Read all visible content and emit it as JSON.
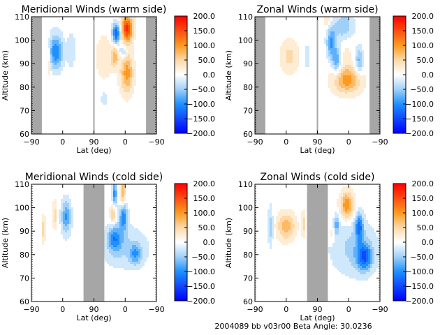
{
  "footer": "2004089 bb v03r00   Beta Angle: 30.0236",
  "colorbar": {
    "min": -200,
    "max": 200,
    "tick_labels": [
      "200.0",
      "150.0",
      "100.0",
      "50.0",
      "0.0",
      "−50.0",
      "−100.0",
      "−150.0",
      "−200.0"
    ],
    "stops": [
      {
        "v": -200,
        "c": "#0000ff"
      },
      {
        "v": -100,
        "c": "#1e90ff"
      },
      {
        "v": -50,
        "c": "#a0d0f8"
      },
      {
        "v": 0,
        "c": "#ffffff"
      },
      {
        "v": 50,
        "c": "#fcd9a8"
      },
      {
        "v": 100,
        "c": "#ff9a20"
      },
      {
        "v": 200,
        "c": "#ff0000"
      }
    ]
  },
  "chart_data": [
    {
      "type": "heatmap",
      "title": "Meridional Winds (warm side)",
      "xlabel": "Lat (deg)",
      "ylabel": "Altitude (km)",
      "xtick_labels": [
        "−90",
        "0",
        "90",
        "0",
        "−90"
      ],
      "ytick_labels": [
        "60",
        "70",
        "80",
        "90",
        "100",
        "110"
      ],
      "ylim": [
        60,
        110
      ],
      "x_range": [
        0,
        360
      ],
      "gray_bands": [
        [
          0,
          30
        ],
        [
          330,
          360
        ]
      ],
      "divider_x": 180,
      "blobs": [
        {
          "x": 70,
          "y": 95,
          "sx": 14,
          "sy": 5,
          "v": -110
        },
        {
          "x": 50,
          "y": 92,
          "sx": 4,
          "sy": 5,
          "v": 50
        },
        {
          "x": 115,
          "y": 96,
          "sx": 8,
          "sy": 5,
          "v": -35
        },
        {
          "x": 245,
          "y": 103,
          "sx": 9,
          "sy": 3,
          "v": -140
        },
        {
          "x": 275,
          "y": 105,
          "sx": 12,
          "sy": 4,
          "v": 170
        },
        {
          "x": 240,
          "y": 93,
          "sx": 8,
          "sy": 3,
          "v": 70
        },
        {
          "x": 265,
          "y": 95,
          "sx": 8,
          "sy": 2,
          "v": -60
        },
        {
          "x": 275,
          "y": 86,
          "sx": 13,
          "sy": 6,
          "v": 100
        },
        {
          "x": 210,
          "y": 93,
          "sx": 20,
          "sy": 8,
          "v": 25
        },
        {
          "x": 210,
          "y": 75,
          "sx": 6,
          "sy": 2,
          "v": -40
        }
      ]
    },
    {
      "type": "heatmap",
      "title": "Zonal Winds (warm side)",
      "xlabel": "Lat (deg)",
      "ylabel": "Altitude (km)",
      "xtick_labels": [
        "−90",
        "0",
        "90",
        "0",
        "−90"
      ],
      "ytick_labels": [
        "60",
        "70",
        "80",
        "90",
        "100",
        "110"
      ],
      "ylim": [
        60,
        110
      ],
      "x_range": [
        0,
        360
      ],
      "gray_bands": [
        [
          0,
          30
        ],
        [
          330,
          360
        ]
      ],
      "divider_x": 180,
      "blobs": [
        {
          "x": 100,
          "y": 93,
          "sx": 18,
          "sy": 5,
          "v": 45
        },
        {
          "x": 150,
          "y": 93,
          "sx": 5,
          "sy": 4,
          "v": -30
        },
        {
          "x": 220,
          "y": 99,
          "sx": 9,
          "sy": 5,
          "v": -90
        },
        {
          "x": 235,
          "y": 91,
          "sx": 8,
          "sy": 4,
          "v": -80
        },
        {
          "x": 300,
          "y": 91,
          "sx": 8,
          "sy": 4,
          "v": -70
        },
        {
          "x": 255,
          "y": 106,
          "sx": 20,
          "sy": 4,
          "v": -60
        },
        {
          "x": 210,
          "y": 108,
          "sx": 8,
          "sy": 2,
          "v": 40
        },
        {
          "x": 265,
          "y": 83,
          "sx": 28,
          "sy": 4,
          "v": 100
        },
        {
          "x": 265,
          "y": 94,
          "sx": 10,
          "sy": 5,
          "v": 20
        }
      ]
    },
    {
      "type": "heatmap",
      "title": "Meridional Winds (cold side)",
      "xlabel": "Lat (deg)",
      "ylabel": "Altitude (km)",
      "xtick_labels": [
        "−90",
        "0",
        "90",
        "0",
        "−90"
      ],
      "ytick_labels": [
        "60",
        "70",
        "80",
        "90",
        "100",
        "110"
      ],
      "ylim": [
        60,
        110
      ],
      "x_range": [
        0,
        360
      ],
      "gray_bands": [
        [
          150,
          210
        ]
      ],
      "blobs": [
        {
          "x": 35,
          "y": 91,
          "sx": 4,
          "sy": 4,
          "v": 55
        },
        {
          "x": 68,
          "y": 97,
          "sx": 5,
          "sy": 4,
          "v": 50
        },
        {
          "x": 100,
          "y": 96,
          "sx": 10,
          "sy": 5,
          "v": -90
        },
        {
          "x": 240,
          "y": 106,
          "sx": 5,
          "sy": 4,
          "v": -100
        },
        {
          "x": 263,
          "y": 107,
          "sx": 5,
          "sy": 4,
          "v": 90
        },
        {
          "x": 235,
          "y": 97,
          "sx": 6,
          "sy": 3,
          "v": 70
        },
        {
          "x": 265,
          "y": 96,
          "sx": 8,
          "sy": 4,
          "v": -110
        },
        {
          "x": 240,
          "y": 87,
          "sx": 14,
          "sy": 4,
          "v": -90
        },
        {
          "x": 300,
          "y": 80,
          "sx": 12,
          "sy": 3,
          "v": -70
        },
        {
          "x": 270,
          "y": 83,
          "sx": 45,
          "sy": 6,
          "v": -40
        }
      ]
    },
    {
      "type": "heatmap",
      "title": "Zonal Winds (cold side)",
      "xlabel": "Lat (deg)",
      "ylabel": "Altitude (km)",
      "xtick_labels": [
        "−90",
        "0",
        "90",
        "0",
        "−90"
      ],
      "ytick_labels": [
        "60",
        "70",
        "80",
        "90",
        "100",
        "110"
      ],
      "ylim": [
        60,
        110
      ],
      "x_range": [
        0,
        360
      ],
      "gray_bands": [
        [
          150,
          210
        ]
      ],
      "blobs": [
        {
          "x": 90,
          "y": 92,
          "sx": 18,
          "sy": 4,
          "v": 80
        },
        {
          "x": 45,
          "y": 92,
          "sx": 5,
          "sy": 6,
          "v": -50
        },
        {
          "x": 140,
          "y": 93,
          "sx": 4,
          "sy": 4,
          "v": 50
        },
        {
          "x": 265,
          "y": 101,
          "sx": 14,
          "sy": 4,
          "v": 110
        },
        {
          "x": 235,
          "y": 93,
          "sx": 5,
          "sy": 3,
          "v": -70
        },
        {
          "x": 300,
          "y": 92,
          "sx": 8,
          "sy": 4,
          "v": -110
        },
        {
          "x": 315,
          "y": 79,
          "sx": 16,
          "sy": 4,
          "v": -120
        },
        {
          "x": 285,
          "y": 83,
          "sx": 45,
          "sy": 8,
          "v": -45
        },
        {
          "x": 222,
          "y": 89,
          "sx": 4,
          "sy": 3,
          "v": 30
        }
      ]
    }
  ]
}
